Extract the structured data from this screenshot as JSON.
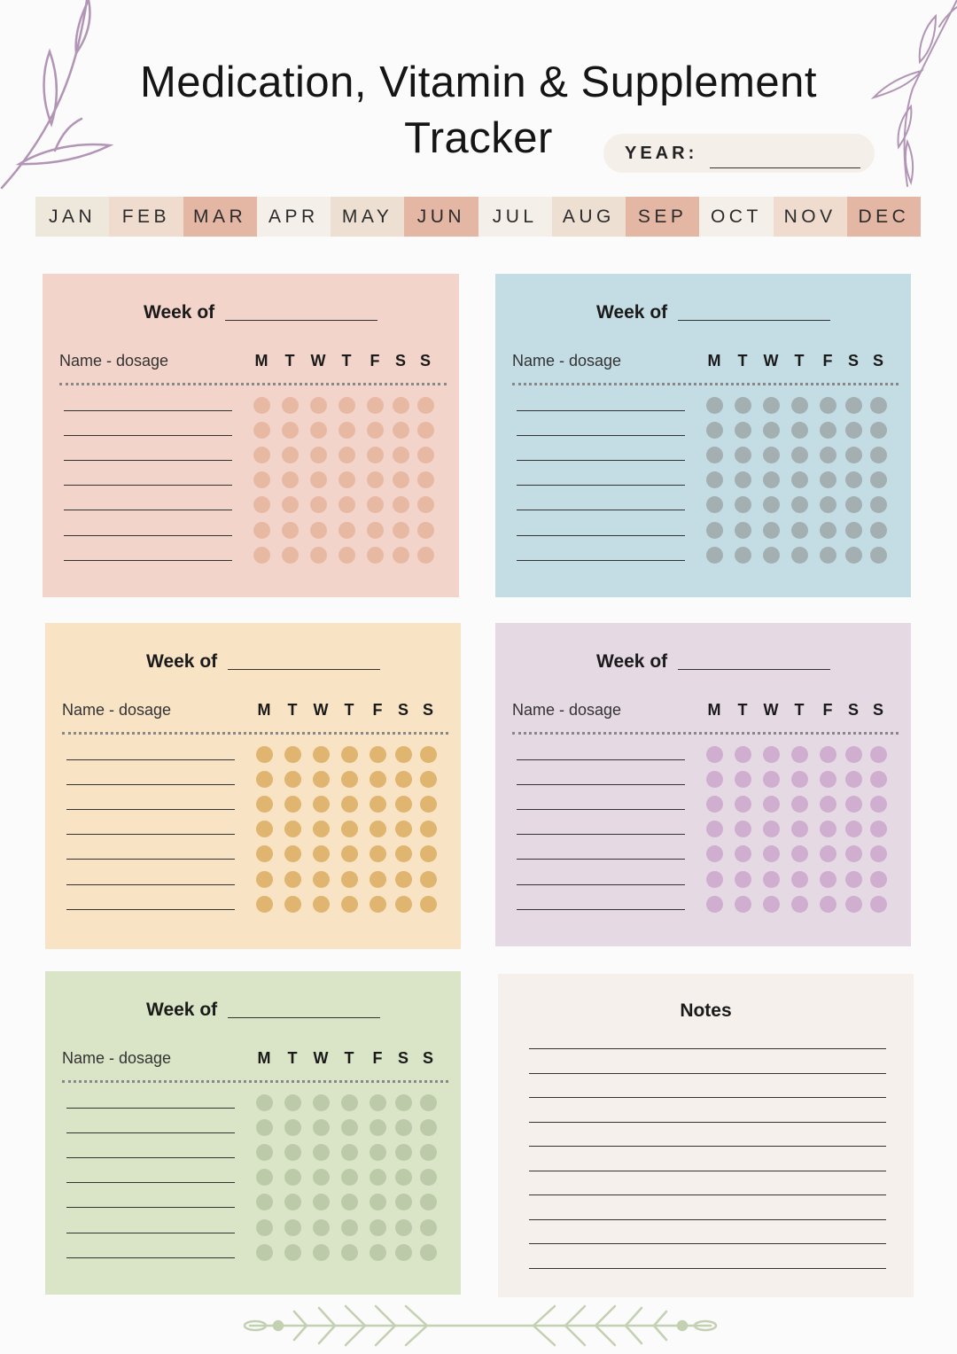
{
  "title_line1": "Medication, Vitamin & Supplement",
  "title_line2": "Tracker",
  "year_label": "YEAR:",
  "months": [
    {
      "label": "JAN",
      "color": "#ede7dc"
    },
    {
      "label": "FEB",
      "color": "#efdccf"
    },
    {
      "label": "MAR",
      "color": "#e4b6a4"
    },
    {
      "label": "APR",
      "color": "#f4efe8"
    },
    {
      "label": "MAY",
      "color": "#eddfd2"
    },
    {
      "label": "JUN",
      "color": "#e4b6a4"
    },
    {
      "label": "JUL",
      "color": "#f4efe8"
    },
    {
      "label": "AUG",
      "color": "#eddfd2"
    },
    {
      "label": "SEP",
      "color": "#e4b6a4"
    },
    {
      "label": "OCT",
      "color": "#f4efe8"
    },
    {
      "label": "NOV",
      "color": "#efdccf"
    },
    {
      "label": "DEC",
      "color": "#e4b6a4"
    }
  ],
  "week_cards": [
    {
      "heading": "Week of",
      "column_label": "Name - dosage",
      "bg": "#f2d4ca",
      "dot": "#e7b9a3"
    },
    {
      "heading": "Week of",
      "column_label": "Name - dosage",
      "bg": "#c4dde5",
      "dot": "#a4afb2"
    },
    {
      "heading": "Week of",
      "column_label": "Name - dosage",
      "bg": "#f8e3c5",
      "dot": "#dfb56f"
    },
    {
      "heading": "Week of",
      "column_label": "Name - dosage",
      "bg": "#e5d9e3",
      "dot": "#d0aed0"
    },
    {
      "heading": "Week of",
      "column_label": "Name - dosage",
      "bg": "#d9e5c6",
      "dot": "#bccaaa"
    }
  ],
  "days": [
    "M",
    "T",
    "W",
    "T",
    "F",
    "S",
    "S"
  ],
  "rows_per_card": 7,
  "notes": {
    "title": "Notes",
    "bg": "#f5f0eb",
    "line_count": 10
  },
  "decoration_color": "#b295b5",
  "vine_color": "#c4d0b2"
}
